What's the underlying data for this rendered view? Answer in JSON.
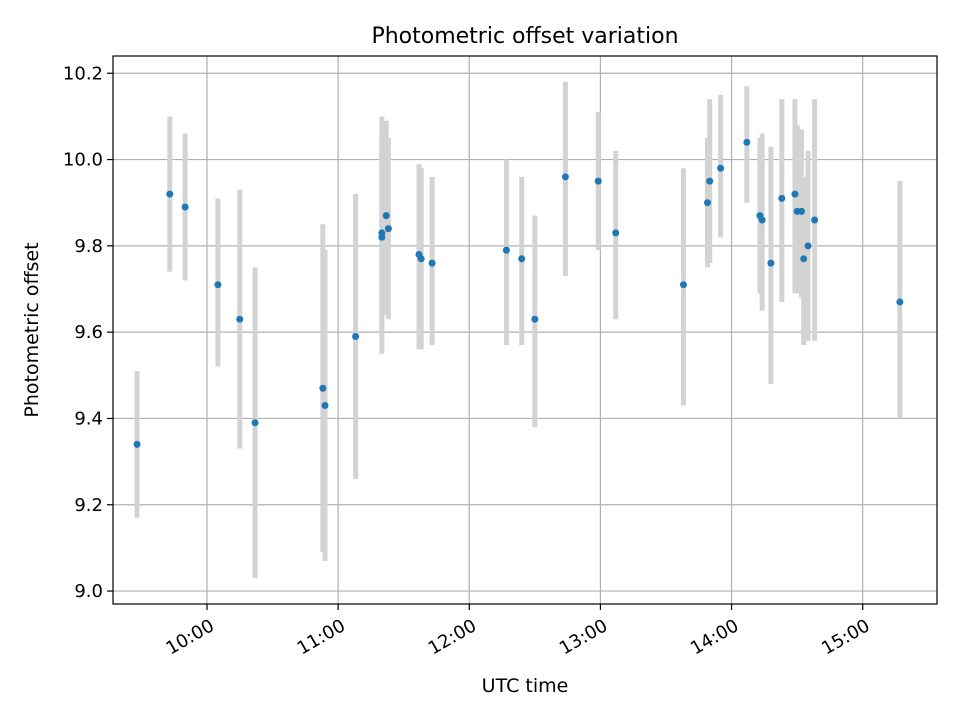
{
  "chart_data": {
    "type": "scatter",
    "title": "Photometric offset variation",
    "xlabel": "UTC time",
    "ylabel": "Photometric offset",
    "x_unit": "time of day (UTC)",
    "xlim": [
      "09:17",
      "15:34"
    ],
    "ylim": [
      8.97,
      10.24
    ],
    "x_ticks": [
      "10:00",
      "11:00",
      "12:00",
      "13:00",
      "14:00",
      "15:00"
    ],
    "y_ticks": [
      "9.0",
      "9.2",
      "9.4",
      "9.6",
      "9.8",
      "10.0",
      "10.2"
    ],
    "grid": true,
    "legend": "none",
    "series": [
      {
        "point_color": "#1f77b4",
        "errorbar_color": "#d3d3d3",
        "points": [
          {
            "x": "09:28",
            "y": 9.34,
            "lo": 9.17,
            "hi": 9.51
          },
          {
            "x": "09:43",
            "y": 9.92,
            "lo": 9.74,
            "hi": 10.1
          },
          {
            "x": "09:50",
            "y": 9.89,
            "lo": 9.72,
            "hi": 10.06
          },
          {
            "x": "10:05",
            "y": 9.71,
            "lo": 9.52,
            "hi": 9.91
          },
          {
            "x": "10:15",
            "y": 9.63,
            "lo": 9.33,
            "hi": 9.93
          },
          {
            "x": "10:22",
            "y": 9.39,
            "lo": 9.03,
            "hi": 9.75
          },
          {
            "x": "10:53",
            "y": 9.47,
            "lo": 9.09,
            "hi": 9.85
          },
          {
            "x": "10:54",
            "y": 9.43,
            "lo": 9.07,
            "hi": 9.79
          },
          {
            "x": "11:08",
            "y": 9.59,
            "lo": 9.26,
            "hi": 9.92
          },
          {
            "x": "11:20",
            "y": 9.83,
            "lo": 9.55,
            "hi": 10.1
          },
          {
            "x": "11:20",
            "y": 9.82,
            "lo": 9.6,
            "hi": 10.05
          },
          {
            "x": "11:22",
            "y": 9.87,
            "lo": 9.64,
            "hi": 10.09
          },
          {
            "x": "11:23",
            "y": 9.84,
            "lo": 9.63,
            "hi": 10.05
          },
          {
            "x": "11:37",
            "y": 9.78,
            "lo": 9.56,
            "hi": 9.99
          },
          {
            "x": "11:38",
            "y": 9.77,
            "lo": 9.56,
            "hi": 9.98
          },
          {
            "x": "11:43",
            "y": 9.76,
            "lo": 9.57,
            "hi": 9.96
          },
          {
            "x": "12:17",
            "y": 9.79,
            "lo": 9.57,
            "hi": 10.0
          },
          {
            "x": "12:24",
            "y": 9.77,
            "lo": 9.57,
            "hi": 9.96
          },
          {
            "x": "12:30",
            "y": 9.63,
            "lo": 9.38,
            "hi": 9.87
          },
          {
            "x": "12:44",
            "y": 9.96,
            "lo": 9.73,
            "hi": 10.18
          },
          {
            "x": "12:59",
            "y": 9.95,
            "lo": 9.79,
            "hi": 10.11
          },
          {
            "x": "13:07",
            "y": 9.83,
            "lo": 9.63,
            "hi": 10.02
          },
          {
            "x": "13:38",
            "y": 9.71,
            "lo": 9.43,
            "hi": 9.98
          },
          {
            "x": "13:49",
            "y": 9.9,
            "lo": 9.75,
            "hi": 10.05
          },
          {
            "x": "13:50",
            "y": 9.95,
            "lo": 9.76,
            "hi": 10.14
          },
          {
            "x": "13:55",
            "y": 9.98,
            "lo": 9.82,
            "hi": 10.15
          },
          {
            "x": "14:07",
            "y": 10.04,
            "lo": 9.9,
            "hi": 10.17
          },
          {
            "x": "14:13",
            "y": 9.87,
            "lo": 9.69,
            "hi": 10.05
          },
          {
            "x": "14:14",
            "y": 9.86,
            "lo": 9.65,
            "hi": 10.06
          },
          {
            "x": "14:18",
            "y": 9.76,
            "lo": 9.48,
            "hi": 10.03
          },
          {
            "x": "14:23",
            "y": 9.91,
            "lo": 9.67,
            "hi": 10.14
          },
          {
            "x": "14:29",
            "y": 9.92,
            "lo": 9.69,
            "hi": 10.14
          },
          {
            "x": "14:30",
            "y": 9.88,
            "lo": 9.69,
            "hi": 10.08
          },
          {
            "x": "14:32",
            "y": 9.88,
            "lo": 9.68,
            "hi": 10.07
          },
          {
            "x": "14:33",
            "y": 9.77,
            "lo": 9.57,
            "hi": 9.96
          },
          {
            "x": "14:35",
            "y": 9.8,
            "lo": 9.58,
            "hi": 10.02
          },
          {
            "x": "14:38",
            "y": 9.86,
            "lo": 9.58,
            "hi": 10.14
          },
          {
            "x": "15:17",
            "y": 9.67,
            "lo": 9.4,
            "hi": 9.95
          }
        ]
      }
    ]
  }
}
